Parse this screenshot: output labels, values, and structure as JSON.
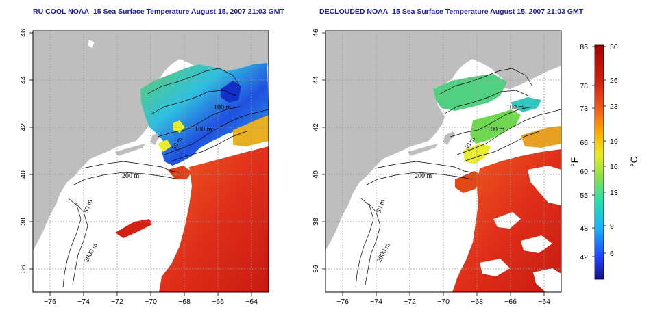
{
  "maps": [
    {
      "id": "left",
      "title": "RU COOL NOAA–15 Sea Surface Temperature August 15, 2007 21:03 GMT"
    },
    {
      "id": "right",
      "title": "DECLOUDED NOAA–15 Sea Surface Temperature August 15, 2007 21:03 GMT"
    }
  ],
  "axes": {
    "x_ticks": [
      "−76",
      "−74",
      "−72",
      "−70",
      "−68",
      "−66",
      "−64"
    ],
    "y_ticks": [
      "36",
      "38",
      "40",
      "42",
      "44",
      "46"
    ],
    "grid": "dotted"
  },
  "contour_labels": {
    "left": [
      "100 m",
      "100 m",
      "50 m",
      "200 m",
      "50 m",
      "2000 m"
    ],
    "right": [
      "100 m",
      "100 m",
      "50 m",
      "200 m",
      "50 m",
      "2000 m"
    ]
  },
  "colorbar": {
    "fahrenheit_ticks": [
      "86",
      "78",
      "73",
      "66",
      "60",
      "55",
      "48",
      "42"
    ],
    "celsius_ticks": [
      "30",
      "26",
      "23",
      "19",
      "16",
      "13",
      "9",
      "6"
    ],
    "fahrenheit_unit": "°F",
    "celsius_unit": "°C",
    "colors": [
      "#1a0f8a",
      "#1e40ff",
      "#19b4ff",
      "#20e0b0",
      "#8ee04a",
      "#e6ec1f",
      "#ffb000",
      "#f26018",
      "#d42010",
      "#a80000"
    ]
  },
  "colors": {
    "land": "#bebebe",
    "title": "#1a1aa0"
  }
}
